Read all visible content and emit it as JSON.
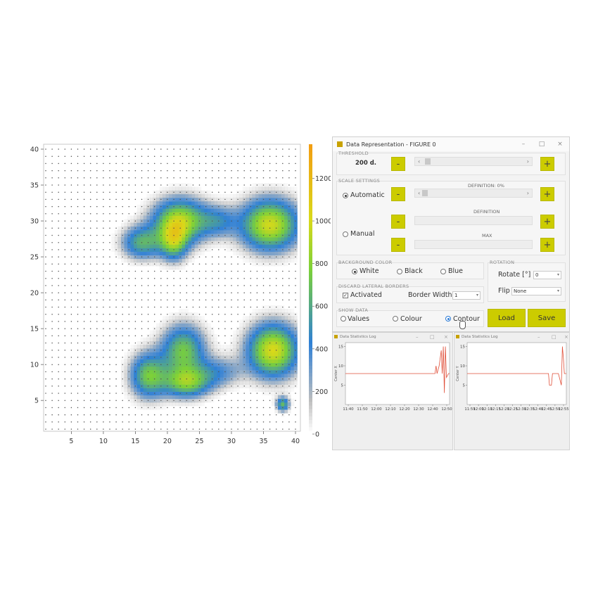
{
  "chart_data": {
    "type": "heatmap",
    "title": "",
    "xlabel": "",
    "ylabel": "",
    "xlim": [
      1,
      40
    ],
    "ylim": [
      1,
      40
    ],
    "x_ticks": [
      "5",
      "10",
      "15",
      "20",
      "25",
      "30",
      "35",
      "40"
    ],
    "y_ticks": [
      "5",
      "10",
      "15",
      "20",
      "25",
      "30",
      "35",
      "40"
    ],
    "colorbar": {
      "ticks": [
        "0",
        "200",
        "400",
        "600",
        "800",
        "1000",
        "1200"
      ],
      "range": [
        0,
        1360
      ],
      "colors": [
        "#ffffff",
        "#bdbdbd",
        "#2f80d6",
        "#7ad03a",
        "#d9d91a",
        "#f39c12"
      ]
    },
    "blobs": [
      {
        "x": 22,
        "y": 30,
        "sx": 3.0,
        "sy": 2.2,
        "peak": 900
      },
      {
        "x": 16,
        "y": 27,
        "sx": 2.2,
        "sy": 1.6,
        "peak": 600
      },
      {
        "x": 21,
        "y": 27,
        "sx": 1.5,
        "sy": 1.8,
        "peak": 620
      },
      {
        "x": 28,
        "y": 30,
        "sx": 2.0,
        "sy": 1.5,
        "peak": 350
      },
      {
        "x": 36,
        "y": 29.5,
        "sx": 3.2,
        "sy": 2.5,
        "peak": 980
      },
      {
        "x": 22.5,
        "y": 12,
        "sx": 2.4,
        "sy": 2.5,
        "peak": 720
      },
      {
        "x": 17,
        "y": 8.5,
        "sx": 2.0,
        "sy": 2.2,
        "peak": 700
      },
      {
        "x": 23,
        "y": 7.5,
        "sx": 2.6,
        "sy": 1.5,
        "peak": 700
      },
      {
        "x": 28,
        "y": 9,
        "sx": 2.5,
        "sy": 1.5,
        "peak": 330
      },
      {
        "x": 36.5,
        "y": 12,
        "sx": 2.8,
        "sy": 2.6,
        "peak": 1000
      },
      {
        "x": 38,
        "y": 4.5,
        "sx": 0.7,
        "sy": 0.7,
        "peak": 650
      }
    ]
  },
  "window": {
    "title": "Data Representation - FIGURE 0",
    "threshold": {
      "label": "THRESHOLD",
      "value": "200 d.",
      "minus": "-",
      "plus": "+",
      "position": 0.03
    },
    "scale": {
      "label": "SCALE SETTINGS",
      "automatic": "Automatic",
      "manual": "Manual",
      "definition_pct": "DEFINITION: 0%",
      "definition": "DEFINITION",
      "max": "MAX",
      "minus": "-",
      "plus": "+",
      "auto_position": 0.0
    },
    "background": {
      "label": "BACKGROUND COLOR",
      "white": "White",
      "black": "Black",
      "blue": "Blue"
    },
    "rotation": {
      "label": "ROTATION",
      "rotate_label": "Rotate [°]",
      "rotate_value": "0",
      "flip_label": "Flip",
      "flip_value": "None"
    },
    "discard": {
      "label": "DISCARD LATERAL BORDERS",
      "activated": "Activated",
      "border_label": "Border Width",
      "border_value": "1"
    },
    "show": {
      "label": "SHOW DATA",
      "values": "Values",
      "colour": "Colour",
      "contour": "Contour"
    },
    "load": "Load",
    "save": "Save",
    "controls": {
      "min": "–",
      "max": "□",
      "close": "×"
    }
  },
  "logs": [
    {
      "title": "Data Statistics Log",
      "ylabel": "Center X",
      "y_ticks": [
        "15",
        "10",
        "5"
      ],
      "x_ticks": [
        "11:40",
        "11:50",
        "12:00",
        "12:10",
        "12:20",
        "12:30",
        "12:40",
        "12:50"
      ],
      "ylim": [
        0,
        16
      ],
      "x": [
        0,
        0.1,
        0.2,
        0.3,
        0.4,
        0.5,
        0.6,
        0.7,
        0.8,
        0.86,
        0.87,
        0.88,
        0.9,
        0.92,
        0.93,
        0.94,
        0.95,
        0.96,
        0.97,
        0.99,
        1.0
      ],
      "y": [
        8,
        8,
        8,
        8,
        8,
        8,
        8,
        8,
        8,
        8,
        10,
        8,
        10,
        14,
        8,
        15,
        3,
        15,
        7,
        8,
        8
      ]
    },
    {
      "title": "Data Statistics Log",
      "ylabel": "Center Y",
      "y_ticks": [
        "15",
        "10",
        "5"
      ],
      "x_ticks": [
        "11:59",
        "12:00",
        "12:10",
        "12:15",
        "12:20",
        "12:25",
        "12:30",
        "12:35",
        "12:40",
        "12:45",
        "12:50",
        "12:55"
      ],
      "ylim": [
        0,
        16
      ],
      "x": [
        0,
        0.1,
        0.2,
        0.3,
        0.4,
        0.5,
        0.6,
        0.7,
        0.8,
        0.82,
        0.83,
        0.85,
        0.86,
        0.9,
        0.92,
        0.95,
        0.96,
        0.97,
        0.98,
        1.0
      ],
      "y": [
        8,
        8,
        8,
        8,
        8,
        8,
        8,
        8,
        8,
        8,
        5,
        5,
        8,
        8,
        8,
        5,
        15,
        12,
        8,
        8
      ]
    }
  ]
}
